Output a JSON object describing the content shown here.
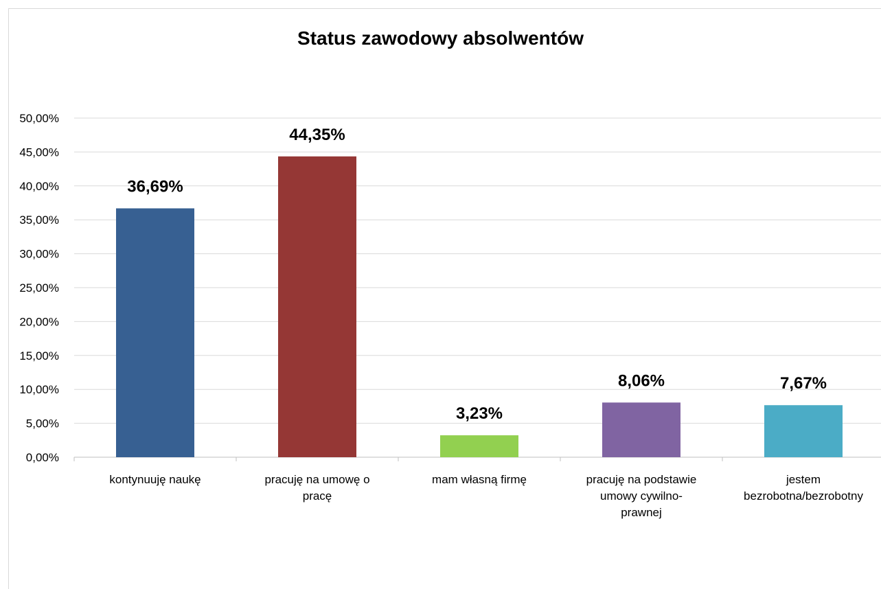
{
  "chart_data": {
    "type": "bar",
    "title": "Status zawodowy absolwentów",
    "xlabel": "",
    "ylabel": "",
    "ylim": [
      0,
      0.5
    ],
    "y_ticks": [
      "0,00%",
      "5,00%",
      "10,00%",
      "15,00%",
      "20,00%",
      "25,00%",
      "30,00%",
      "35,00%",
      "40,00%",
      "45,00%",
      "50,00%"
    ],
    "categories": [
      [
        "kontynuuję naukę"
      ],
      [
        "pracuję na umowę o",
        "pracę"
      ],
      [
        "mam własną firmę"
      ],
      [
        "pracuję na podstawie",
        "umowy cywilno-",
        "prawnej"
      ],
      [
        "jestem",
        "bezrobotna/bezrobotny"
      ]
    ],
    "values": [
      0.3669,
      0.4435,
      0.0323,
      0.0806,
      0.0767
    ],
    "data_labels": [
      "36,69%",
      "44,35%",
      "3,23%",
      "8,06%",
      "7,67%"
    ],
    "colors": [
      "#376092",
      "#953735",
      "#92D050",
      "#8064A2",
      "#4BACC6"
    ],
    "grid": true,
    "legend": "none"
  }
}
